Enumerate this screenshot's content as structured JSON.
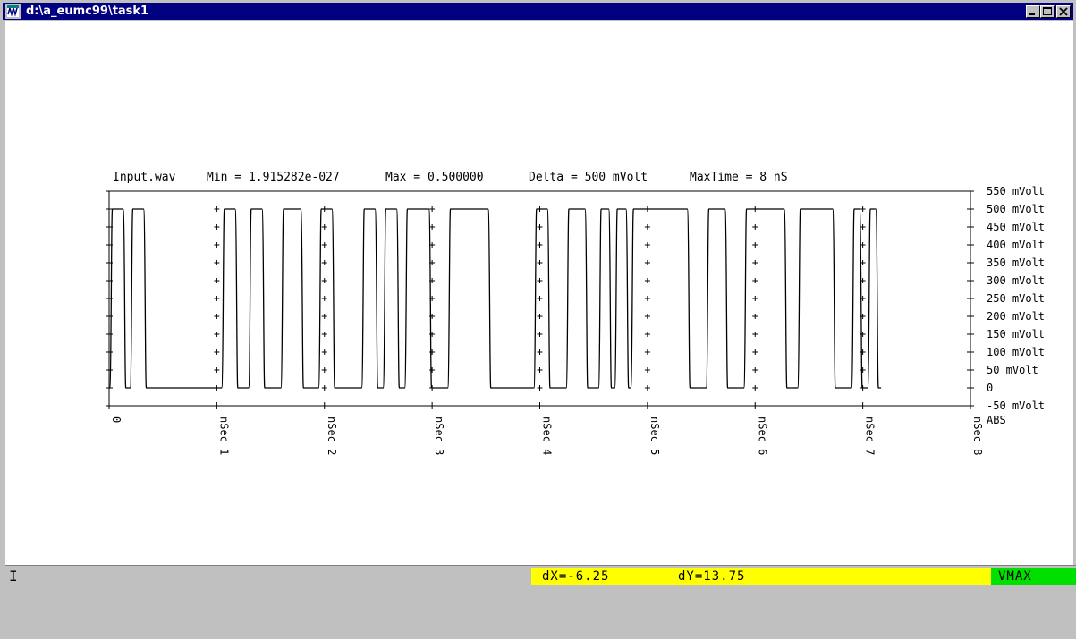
{
  "window": {
    "title": "d:\\a_eumc99\\task1",
    "controls": [
      "minimize-icon",
      "maximize-icon",
      "close-icon"
    ]
  },
  "plot": {
    "header": {
      "file": "Input.wav",
      "min": "Min = 1.915282e-027",
      "max": "Max = 0.500000",
      "delta": "Delta = 500 mVolt",
      "maxtime": "MaxTime = 8 nS"
    }
  },
  "chart_data": {
    "type": "line",
    "xlim": [
      0,
      8
    ],
    "ylim": [
      -50,
      550
    ],
    "x_ticks": [
      {
        "value": 0,
        "label": "0"
      },
      {
        "value": 1,
        "label": "1 nSec"
      },
      {
        "value": 2,
        "label": "2 nSec"
      },
      {
        "value": 3,
        "label": "3 nSec"
      },
      {
        "value": 4,
        "label": "4 nSec"
      },
      {
        "value": 5,
        "label": "5 nSec"
      },
      {
        "value": 6,
        "label": "6 nSec"
      },
      {
        "value": 7,
        "label": "7 nSec"
      },
      {
        "value": 8,
        "label": "8 nSec"
      }
    ],
    "y_ticks": [
      {
        "value": 550,
        "label": "550 mVolt"
      },
      {
        "value": 500,
        "label": "500 mVolt"
      },
      {
        "value": 450,
        "label": "450 mVolt"
      },
      {
        "value": 400,
        "label": "400 mVolt"
      },
      {
        "value": 350,
        "label": "350 mVolt"
      },
      {
        "value": 300,
        "label": "300 mVolt"
      },
      {
        "value": 250,
        "label": "250 mVolt"
      },
      {
        "value": 200,
        "label": "200 mVolt"
      },
      {
        "value": 150,
        "label": "150 mVolt"
      },
      {
        "value": 100,
        "label": "100 mVolt"
      },
      {
        "value": 50,
        "label": "50 mVolt"
      },
      {
        "value": 0,
        "label": "0"
      },
      {
        "value": -50,
        "label": "-50 mVolt"
      }
    ],
    "y_unit_label": "ABS",
    "high_level": 500,
    "low_level": 0,
    "high_intervals_ns": [
      [
        0.03,
        0.13
      ],
      [
        0.22,
        0.32
      ],
      [
        1.07,
        1.17
      ],
      [
        1.32,
        1.42
      ],
      [
        1.62,
        1.78
      ],
      [
        1.97,
        2.07
      ],
      [
        2.37,
        2.47
      ],
      [
        2.57,
        2.67
      ],
      [
        2.77,
        2.97
      ],
      [
        3.17,
        3.52
      ],
      [
        3.97,
        4.07
      ],
      [
        4.27,
        4.42
      ],
      [
        4.57,
        4.64
      ],
      [
        4.72,
        4.8
      ],
      [
        4.87,
        5.37
      ],
      [
        5.57,
        5.72
      ],
      [
        5.92,
        6.27
      ],
      [
        6.42,
        6.72
      ],
      [
        6.92,
        6.97
      ],
      [
        7.07,
        7.12
      ]
    ],
    "end_ns": 7.17
  },
  "status": {
    "cursor_glyph": "I",
    "dx": "dX=-6.25",
    "dy": "dY=13.75",
    "mode": "VMAX"
  }
}
